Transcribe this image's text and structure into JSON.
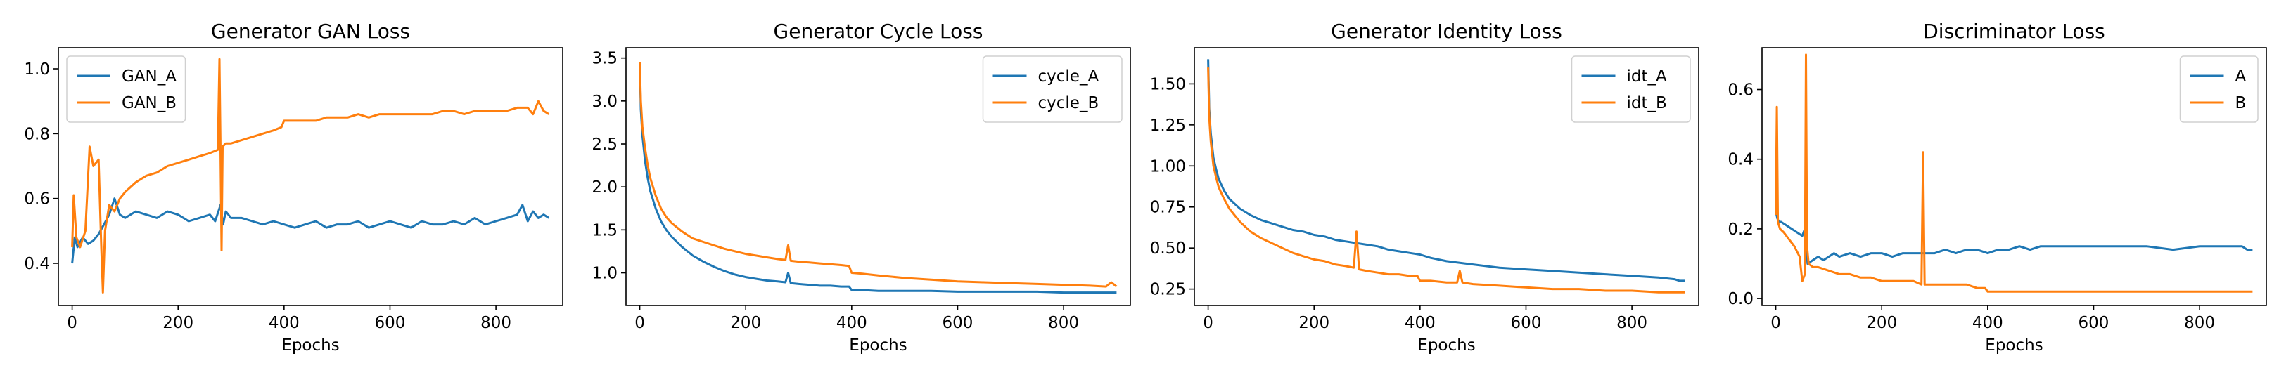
{
  "chart_data": [
    {
      "type": "line",
      "title": "Generator GAN Loss",
      "xlabel": "Epochs",
      "ylabel": "",
      "xlim": [
        -26,
        926
      ],
      "ylim": [
        0.27,
        1.065
      ],
      "xticks": [
        0,
        200,
        400,
        600,
        800
      ],
      "yticks": [
        0.4,
        0.6,
        0.8,
        1.0
      ],
      "ytick_labels": [
        "0.4",
        "0.6",
        "0.8",
        "1.0"
      ],
      "legend_position": "upper-left",
      "grid": false,
      "series": [
        {
          "name": "GAN_A",
          "color": "#1f77b4",
          "x": [
            0,
            5,
            10,
            20,
            30,
            40,
            50,
            60,
            70,
            80,
            90,
            100,
            120,
            140,
            160,
            180,
            200,
            220,
            240,
            260,
            270,
            280,
            285,
            290,
            300,
            320,
            340,
            360,
            380,
            400,
            420,
            440,
            460,
            480,
            500,
            520,
            540,
            560,
            580,
            600,
            620,
            640,
            660,
            680,
            700,
            720,
            740,
            760,
            780,
            800,
            820,
            840,
            850,
            860,
            870,
            880,
            890,
            900
          ],
          "y": [
            0.4,
            0.48,
            0.45,
            0.48,
            0.46,
            0.47,
            0.49,
            0.52,
            0.55,
            0.6,
            0.55,
            0.54,
            0.56,
            0.55,
            0.54,
            0.56,
            0.55,
            0.53,
            0.54,
            0.55,
            0.53,
            0.58,
            0.52,
            0.56,
            0.54,
            0.54,
            0.53,
            0.52,
            0.53,
            0.52,
            0.51,
            0.52,
            0.53,
            0.51,
            0.52,
            0.52,
            0.53,
            0.51,
            0.52,
            0.53,
            0.52,
            0.51,
            0.53,
            0.52,
            0.52,
            0.53,
            0.52,
            0.54,
            0.52,
            0.53,
            0.54,
            0.55,
            0.58,
            0.53,
            0.56,
            0.54,
            0.55,
            0.54
          ]
        },
        {
          "name": "GAN_B",
          "color": "#ff7f0e",
          "x": [
            0,
            3,
            8,
            15,
            25,
            33,
            40,
            50,
            55,
            58,
            62,
            70,
            80,
            90,
            100,
            120,
            140,
            160,
            180,
            200,
            220,
            240,
            260,
            275,
            278,
            280,
            282,
            284,
            290,
            300,
            320,
            340,
            360,
            380,
            395,
            400,
            420,
            440,
            460,
            480,
            500,
            520,
            540,
            560,
            580,
            600,
            620,
            640,
            660,
            680,
            700,
            720,
            740,
            760,
            780,
            800,
            820,
            840,
            860,
            870,
            880,
            890,
            900
          ],
          "y": [
            0.45,
            0.61,
            0.48,
            0.45,
            0.5,
            0.76,
            0.7,
            0.72,
            0.45,
            0.31,
            0.5,
            0.58,
            0.56,
            0.6,
            0.62,
            0.65,
            0.67,
            0.68,
            0.7,
            0.71,
            0.72,
            0.73,
            0.74,
            0.75,
            1.03,
            0.75,
            0.44,
            0.76,
            0.77,
            0.77,
            0.78,
            0.79,
            0.8,
            0.81,
            0.82,
            0.84,
            0.84,
            0.84,
            0.84,
            0.85,
            0.85,
            0.85,
            0.86,
            0.85,
            0.86,
            0.86,
            0.86,
            0.86,
            0.86,
            0.86,
            0.87,
            0.87,
            0.86,
            0.87,
            0.87,
            0.87,
            0.87,
            0.88,
            0.88,
            0.86,
            0.9,
            0.87,
            0.86
          ]
        }
      ]
    },
    {
      "type": "line",
      "title": "Generator Cycle Loss",
      "xlabel": "Epochs",
      "ylabel": "",
      "xlim": [
        -26,
        926
      ],
      "ylim": [
        0.62,
        3.62
      ],
      "xticks": [
        0,
        200,
        400,
        600,
        800
      ],
      "yticks": [
        1.0,
        1.5,
        2.0,
        2.5,
        3.0,
        3.5
      ],
      "ytick_labels": [
        "1.0",
        "1.5",
        "2.0",
        "2.5",
        "3.0",
        "3.5"
      ],
      "legend_position": "upper-right",
      "grid": false,
      "series": [
        {
          "name": "cycle_A",
          "color": "#1f77b4",
          "x": [
            0,
            2,
            5,
            10,
            15,
            20,
            30,
            40,
            50,
            60,
            80,
            100,
            120,
            140,
            160,
            180,
            200,
            220,
            240,
            260,
            275,
            280,
            285,
            300,
            320,
            340,
            360,
            380,
            395,
            400,
            420,
            450,
            500,
            550,
            600,
            650,
            700,
            750,
            800,
            850,
            900
          ],
          "y": [
            3.45,
            2.9,
            2.6,
            2.3,
            2.1,
            1.95,
            1.75,
            1.6,
            1.5,
            1.42,
            1.3,
            1.2,
            1.13,
            1.07,
            1.02,
            0.98,
            0.95,
            0.93,
            0.91,
            0.9,
            0.89,
            1.0,
            0.88,
            0.87,
            0.86,
            0.85,
            0.85,
            0.84,
            0.84,
            0.8,
            0.8,
            0.79,
            0.79,
            0.79,
            0.78,
            0.78,
            0.78,
            0.78,
            0.77,
            0.77,
            0.77
          ]
        },
        {
          "name": "cycle_B",
          "color": "#ff7f0e",
          "x": [
            0,
            2,
            5,
            10,
            15,
            20,
            30,
            40,
            50,
            60,
            80,
            100,
            120,
            140,
            160,
            180,
            200,
            220,
            240,
            260,
            275,
            280,
            285,
            300,
            320,
            340,
            360,
            380,
            395,
            400,
            420,
            450,
            500,
            550,
            600,
            650,
            700,
            750,
            800,
            850,
            880,
            890,
            900
          ],
          "y": [
            3.45,
            3.0,
            2.7,
            2.45,
            2.25,
            2.1,
            1.9,
            1.75,
            1.65,
            1.58,
            1.48,
            1.4,
            1.36,
            1.32,
            1.28,
            1.25,
            1.22,
            1.2,
            1.18,
            1.16,
            1.15,
            1.32,
            1.14,
            1.13,
            1.12,
            1.11,
            1.1,
            1.09,
            1.08,
            1.0,
            0.99,
            0.97,
            0.94,
            0.92,
            0.9,
            0.89,
            0.88,
            0.87,
            0.86,
            0.85,
            0.84,
            0.89,
            0.84
          ]
        }
      ]
    },
    {
      "type": "line",
      "title": "Generator Identity Loss",
      "xlabel": "Epochs",
      "ylabel": "",
      "xlim": [
        -26,
        926
      ],
      "ylim": [
        0.15,
        1.72
      ],
      "xticks": [
        0,
        200,
        400,
        600,
        800
      ],
      "yticks": [
        0.25,
        0.5,
        0.75,
        1.0,
        1.25,
        1.5
      ],
      "ytick_labels": [
        "0.25",
        "0.50",
        "0.75",
        "1.00",
        "1.25",
        "1.50"
      ],
      "legend_position": "upper-right",
      "grid": false,
      "series": [
        {
          "name": "idt_A",
          "color": "#1f77b4",
          "x": [
            0,
            2,
            5,
            10,
            15,
            20,
            30,
            40,
            50,
            60,
            80,
            100,
            120,
            140,
            160,
            180,
            200,
            220,
            240,
            260,
            280,
            300,
            320,
            340,
            360,
            380,
            400,
            420,
            450,
            500,
            550,
            600,
            650,
            700,
            750,
            800,
            850,
            880,
            890,
            900
          ],
          "y": [
            1.65,
            1.35,
            1.2,
            1.05,
            0.98,
            0.92,
            0.85,
            0.8,
            0.77,
            0.74,
            0.7,
            0.67,
            0.65,
            0.63,
            0.61,
            0.6,
            0.58,
            0.57,
            0.55,
            0.54,
            0.53,
            0.52,
            0.51,
            0.49,
            0.48,
            0.47,
            0.46,
            0.44,
            0.42,
            0.4,
            0.38,
            0.37,
            0.36,
            0.35,
            0.34,
            0.33,
            0.32,
            0.31,
            0.3,
            0.3
          ]
        },
        {
          "name": "idt_B",
          "color": "#ff7f0e",
          "x": [
            0,
            2,
            5,
            10,
            15,
            20,
            30,
            40,
            50,
            60,
            80,
            100,
            120,
            140,
            160,
            180,
            200,
            220,
            240,
            260,
            275,
            280,
            285,
            300,
            320,
            340,
            360,
            380,
            395,
            400,
            420,
            450,
            470,
            475,
            480,
            500,
            550,
            600,
            650,
            700,
            750,
            800,
            850,
            900
          ],
          "y": [
            1.6,
            1.3,
            1.15,
            1.0,
            0.93,
            0.87,
            0.8,
            0.74,
            0.7,
            0.66,
            0.6,
            0.56,
            0.53,
            0.5,
            0.47,
            0.45,
            0.43,
            0.42,
            0.4,
            0.39,
            0.38,
            0.6,
            0.37,
            0.36,
            0.35,
            0.34,
            0.34,
            0.33,
            0.33,
            0.3,
            0.3,
            0.29,
            0.29,
            0.36,
            0.29,
            0.28,
            0.27,
            0.26,
            0.25,
            0.25,
            0.24,
            0.24,
            0.23,
            0.23
          ]
        }
      ]
    },
    {
      "type": "line",
      "title": "Discriminator Loss",
      "xlabel": "Epochs",
      "ylabel": "",
      "xlim": [
        -26,
        926
      ],
      "ylim": [
        -0.02,
        0.72
      ],
      "xticks": [
        0,
        200,
        400,
        600,
        800
      ],
      "yticks": [
        0.0,
        0.2,
        0.4,
        0.6
      ],
      "ytick_labels": [
        "0.0",
        "0.2",
        "0.4",
        "0.6"
      ],
      "legend_position": "upper-right",
      "grid": false,
      "series": [
        {
          "name": "A",
          "color": "#1f77b4",
          "x": [
            0,
            3,
            6,
            10,
            20,
            30,
            40,
            50,
            55,
            60,
            70,
            80,
            90,
            100,
            110,
            120,
            140,
            160,
            180,
            200,
            220,
            240,
            260,
            280,
            300,
            320,
            340,
            360,
            380,
            400,
            420,
            440,
            460,
            480,
            500,
            550,
            600,
            650,
            700,
            750,
            800,
            850,
            880,
            890,
            900
          ],
          "y": [
            0.25,
            0.23,
            0.22,
            0.22,
            0.21,
            0.2,
            0.19,
            0.18,
            0.2,
            0.1,
            0.11,
            0.12,
            0.11,
            0.12,
            0.13,
            0.12,
            0.13,
            0.12,
            0.13,
            0.13,
            0.12,
            0.13,
            0.13,
            0.13,
            0.13,
            0.14,
            0.13,
            0.14,
            0.14,
            0.13,
            0.14,
            0.14,
            0.15,
            0.14,
            0.15,
            0.15,
            0.15,
            0.15,
            0.15,
            0.14,
            0.15,
            0.15,
            0.15,
            0.14,
            0.14
          ]
        },
        {
          "name": "B",
          "color": "#ff7f0e",
          "x": [
            0,
            2,
            4,
            8,
            15,
            25,
            35,
            45,
            50,
            55,
            57,
            59,
            62,
            70,
            80,
            100,
            120,
            140,
            160,
            180,
            200,
            220,
            240,
            260,
            275,
            278,
            281,
            290,
            300,
            320,
            340,
            360,
            380,
            395,
            400,
            420,
            450,
            500,
            550,
            600,
            650,
            700,
            750,
            800,
            850,
            900
          ],
          "y": [
            0.24,
            0.55,
            0.22,
            0.2,
            0.19,
            0.17,
            0.15,
            0.12,
            0.05,
            0.07,
            0.7,
            0.15,
            0.1,
            0.09,
            0.09,
            0.08,
            0.07,
            0.07,
            0.06,
            0.06,
            0.05,
            0.05,
            0.05,
            0.05,
            0.04,
            0.42,
            0.04,
            0.04,
            0.04,
            0.04,
            0.04,
            0.04,
            0.03,
            0.03,
            0.02,
            0.02,
            0.02,
            0.02,
            0.02,
            0.02,
            0.02,
            0.02,
            0.02,
            0.02,
            0.02,
            0.02
          ]
        }
      ]
    }
  ]
}
